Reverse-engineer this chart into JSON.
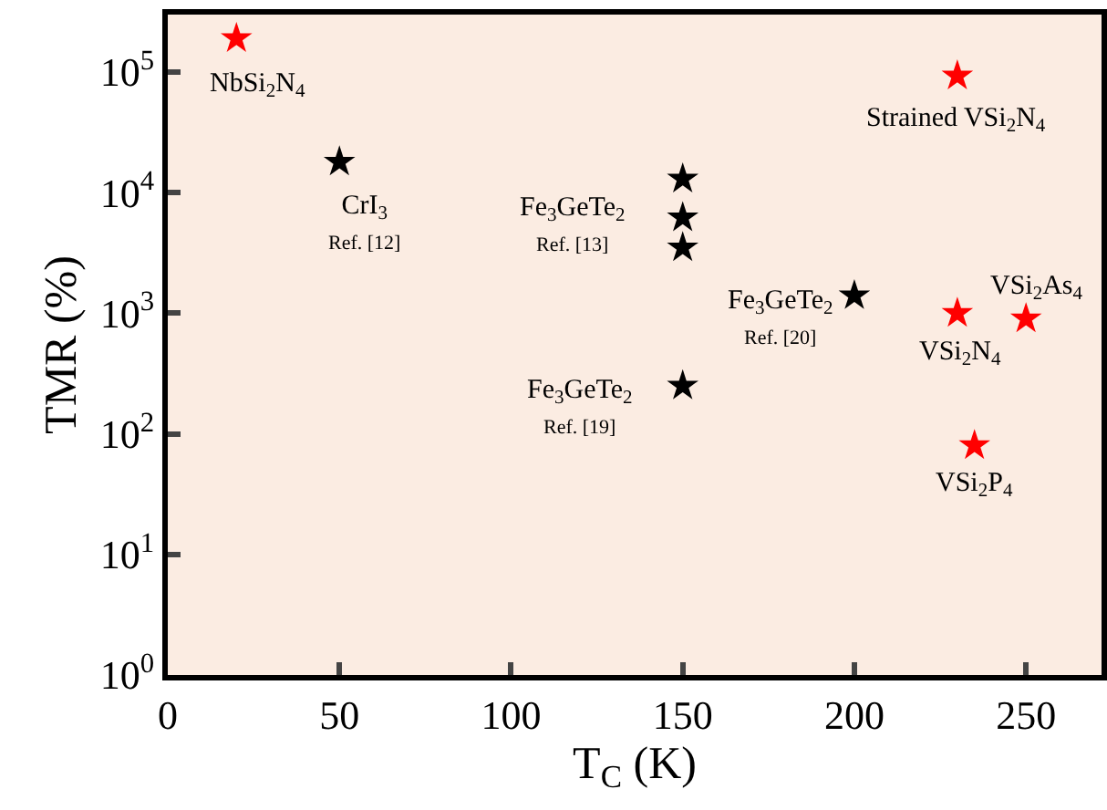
{
  "chart_data": {
    "type": "scatter",
    "xlabel": "T$_{C}$ (K)",
    "ylabel": "TMR (%)",
    "log": "y",
    "grid": false,
    "marker": "star",
    "xlim": [
      0,
      272
    ],
    "xticks": [
      0,
      50,
      100,
      150,
      200,
      250
    ],
    "ylim": [
      1,
      300000
    ],
    "yticks": [
      {
        "value": 1,
        "label": "10$^{0}$"
      },
      {
        "value": 10,
        "label": "10$^{1}$"
      },
      {
        "value": 100,
        "label": "10$^{2}$"
      },
      {
        "value": 1000,
        "label": "10$^{3}$"
      },
      {
        "value": 10000,
        "label": "10$^{4}$"
      },
      {
        "value": 100000,
        "label": "10$^{5}$"
      }
    ],
    "series": [
      {
        "color": "#000000",
        "x": [
          50,
          150,
          150,
          150,
          200,
          150
        ],
        "values": [
          18000,
          13000,
          6200,
          3500,
          1400,
          250
        ]
      },
      {
        "color": "#ff0000",
        "x": [
          20,
          230,
          230,
          250,
          235
        ],
        "values": [
          190000,
          93000,
          1000,
          900,
          80
        ]
      }
    ],
    "annotations": [
      {
        "text": "NbSi$_{2}$N$_{4}$",
        "x": 20,
        "y": 190000
      },
      {
        "text": "Strained VSi$_{2}$N$_{4}$",
        "x": 230,
        "y": 93000
      },
      {
        "text": "CrI$_{3}$\nRef. [12]",
        "x": 50,
        "y": 18000
      },
      {
        "text": "Fe$_{3}$GeTe$_{2}$\nRef. [13]",
        "x": 150,
        "y": 6200
      },
      {
        "text": "Fe$_{3}$GeTe$_{2}$\nRef. [20]",
        "x": 200,
        "y": 1400
      },
      {
        "text": "Fe$_{3}$GeTe$_{2}$\nRef. [19]",
        "x": 150,
        "y": 250
      },
      {
        "text": "VSi$_{2}$N$_{4}$",
        "x": 230,
        "y": 1000
      },
      {
        "text": "VSi$_{2}$As$_{4}$",
        "x": 250,
        "y": 900
      },
      {
        "text": "VSi$_{2}$P$_{4}$",
        "x": 235,
        "y": 80
      }
    ]
  }
}
